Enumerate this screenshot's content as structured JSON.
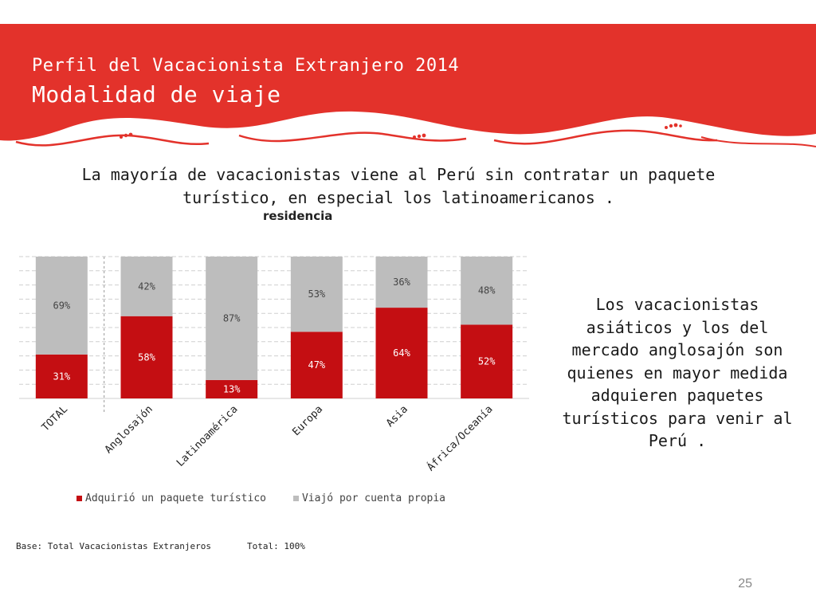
{
  "header": {
    "supertitle": "Perfil del Vacacionista Extranjero 2014",
    "title": "Modalidad de viaje"
  },
  "headline": "La mayoría de vacacionistas viene al Perú sin contratar un paquete turístico, en especial los latinoamericanos .",
  "chart_subtitle": "residencia",
  "side_note": "Los vacacionistas asiáticos y los del mercado anglosajón son quienes en mayor medida adquieren paquetes turísticos para venir al Perú .",
  "footer": {
    "base": "Base: Total Vacacionistas Extranjeros",
    "total": "Total: 100%"
  },
  "page_number": "25",
  "colors": {
    "brand_red": "#e3322b",
    "series_red": "#c40e12",
    "series_gray": "#bdbdbd"
  },
  "chart_data": {
    "type": "bar",
    "stacked": true,
    "categories": [
      "TOTAL",
      "Anglosajón",
      "Latinoamérica",
      "Europa",
      "Asia",
      "África/Oceanía"
    ],
    "series": [
      {
        "name": "Adquirió un paquete turístico",
        "values": [
          31,
          58,
          13,
          47,
          64,
          52
        ],
        "labels": [
          "31%",
          "58%",
          "13%",
          "47%",
          "64%",
          "52%"
        ],
        "color": "#c40e12"
      },
      {
        "name": "Viajó por cuenta propia",
        "values": [
          69,
          42,
          87,
          53,
          36,
          48
        ],
        "labels": [
          "69%",
          "42%",
          "87%",
          "53%",
          "36%",
          "48%"
        ],
        "color": "#bdbdbd"
      }
    ],
    "ylim": [
      0,
      100
    ],
    "grid": true,
    "legend": "bottom"
  }
}
